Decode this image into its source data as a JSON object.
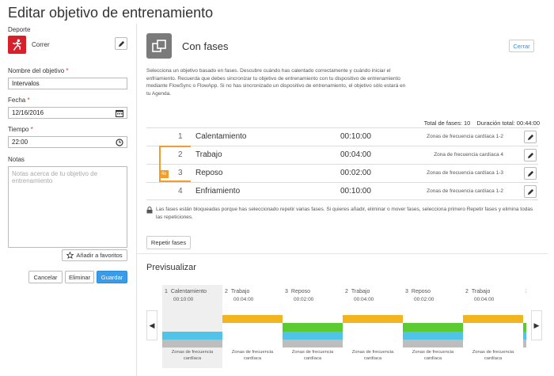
{
  "page_title": "Editar objetivo de entrenamiento",
  "form": {
    "sport_label": "Deporte",
    "sport_value": "Correr",
    "name_label": "Nombre del objetivo",
    "name_value": "Intervalos",
    "date_label": "Fecha",
    "date_value": "12/16/2016",
    "time_label": "Tiempo",
    "time_value": "22:00",
    "notes_label": "Notas",
    "notes_placeholder": "Notas acerca de tu objetivo de entrenamiento",
    "required_mark": "*",
    "favorites_label": "Añadir a favoritos",
    "cancel_label": "Cancelar",
    "delete_label": "Eliminar",
    "save_label": "Guardar"
  },
  "panel": {
    "heading": "Con fases",
    "close_label": "Cerrar",
    "description": "Selecciona un objetivo basado en fases. Descubre cuándo has calentado correctamente y cuándo iniciar el enfriamiento. Recuerda que debes sincronizar tu objetivo de entrenamiento con tu dispositivo de entrenamiento mediante FlowSync o FlowApp. Si no has sincronizado un dispositivo de entrenamiento, el objetivo sólo estará en tu Agenda.",
    "total_phases": "Total de fases: 10",
    "total_duration": "Duración total: 00:44:00",
    "repeat_badge": "4x",
    "phases": [
      {
        "num": "1",
        "name": "Calentamiento",
        "duration": "00:10:00",
        "zone": "Zonas de frecuencia cardíaca 1-2"
      },
      {
        "num": "2",
        "name": "Trabajo",
        "duration": "00:04:00",
        "zone": "Zona de frecuencia cardíaca 4"
      },
      {
        "num": "3",
        "name": "Reposo",
        "duration": "00:02:00",
        "zone": "Zonas de frecuencia cardíaca 1-3"
      },
      {
        "num": "4",
        "name": "Enfriamiento",
        "duration": "00:10:00",
        "zone": "Zonas de frecuencia cardíaca 1-2"
      }
    ],
    "lock_note": "Las fases están bloqueadas porque has seleccionado repetir varias fases. Si quieres añadir, eliminar o mover fases, selecciona primero Repetir fases y elimina todas las repeticiones.",
    "repeat_label": "Repetir fases"
  },
  "preview": {
    "title": "Previsualizar",
    "segments": [
      {
        "num": "1",
        "name": "Calentamiento",
        "time": "00:10:00",
        "foot": "Zonas de frecuencia cardíaca"
      },
      {
        "num": "2",
        "name": "Trabajo",
        "time": "00:04:00",
        "foot": "Zonas de frecuencia cardíaca"
      },
      {
        "num": "3",
        "name": "Reposo",
        "time": "00:02:00",
        "foot": "Zonas de frecuencia cardíaca"
      },
      {
        "num": "2",
        "name": "Trabajo",
        "time": "00:04:00",
        "foot": "Zonas de frecuencia cardíaca"
      },
      {
        "num": "3",
        "name": "Reposo",
        "time": "00:02:00",
        "foot": "Zonas de frecuencia cardíaca"
      },
      {
        "num": "2",
        "name": "Trabajo",
        "time": "00:04:00",
        "foot": "Zonas de frecuencia cardíaca"
      },
      {
        "num": "3",
        "name": "Re",
        "time": "",
        "foot": ""
      }
    ],
    "prev_arrow": "◀",
    "next_arrow": "▶"
  },
  "colors": {
    "accent": "#3a9be8",
    "sport_red": "#d8202c",
    "repeat_orange": "#f39c2c",
    "zone_yellow": "#f2b51f",
    "zone_green": "#5ccb31",
    "zone_blue": "#4fc3e8",
    "zone_gray": "#bdbdbd"
  }
}
